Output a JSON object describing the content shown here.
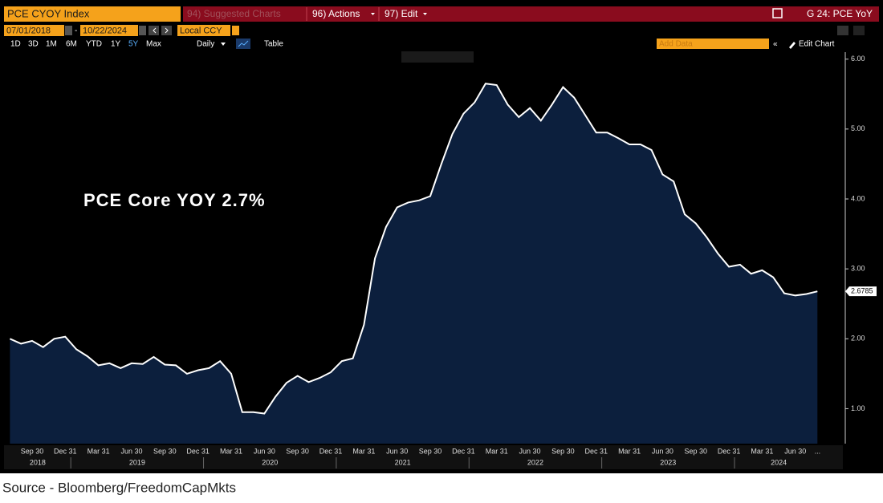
{
  "toolbar": {
    "ticker": "PCE CYOY Index",
    "suggested": "94) Suggested Charts",
    "actions": "96) Actions",
    "edit": "97) Edit",
    "chart_id": "G 24: PCE YoY"
  },
  "dates": {
    "start": "07/01/2018",
    "end": "10/22/2024",
    "currency": "Local CCY"
  },
  "periods": [
    "1D",
    "3D",
    "1M",
    "6M",
    "YTD",
    "1Y",
    "5Y",
    "Max"
  ],
  "frequency": "Daily",
  "table": "Table",
  "add_data": "Add Data",
  "edit_chart": "Edit Chart",
  "source": "Source - Bloomberg/FreedomCapMkts",
  "chart_data": {
    "type": "area",
    "annotation": "PCE Core YOY 2.7%",
    "categories": [
      null,
      null,
      "Sep 30",
      null,
      null,
      "Dec 31",
      null,
      null,
      "Mar 31",
      null,
      null,
      "Jun 30",
      null,
      null,
      "Sep 30",
      null,
      null,
      "Dec 31",
      null,
      null,
      "Mar 31",
      null,
      null,
      "Jun 30",
      null,
      null,
      "Sep 30",
      null,
      null,
      "Dec 31",
      null,
      null,
      "Mar 31",
      null,
      null,
      "Jun 30",
      null,
      null,
      "Sep 30",
      null,
      null,
      "Dec 31",
      null,
      null,
      "Mar 31",
      null,
      null,
      "Jun 30",
      null,
      null,
      "Sep 30",
      null,
      null,
      "Dec 31",
      null,
      null,
      "Mar 31",
      null,
      null,
      "Jun 30",
      null,
      null,
      "Sep 30",
      null,
      null,
      "Dec 31",
      null,
      null,
      "Mar 31",
      null,
      null,
      "Jun 30",
      null,
      "..."
    ],
    "years": [
      "2018",
      "2019",
      "2020",
      "2021",
      "2022",
      "2023",
      "2024"
    ],
    "values": [
      2.0,
      1.93,
      1.97,
      1.88,
      2.0,
      2.03,
      1.85,
      1.75,
      1.62,
      1.65,
      1.58,
      1.65,
      1.64,
      1.74,
      1.63,
      1.62,
      1.5,
      1.55,
      1.58,
      1.68,
      1.5,
      0.95,
      0.95,
      0.93,
      1.17,
      1.37,
      1.47,
      1.38,
      1.44,
      1.52,
      1.68,
      1.72,
      2.2,
      3.15,
      3.6,
      3.88,
      3.95,
      3.98,
      4.04,
      4.5,
      4.93,
      5.22,
      5.38,
      5.65,
      5.63,
      5.35,
      5.17,
      5.3,
      5.12,
      5.35,
      5.6,
      5.45,
      5.2,
      4.95,
      4.95,
      4.87,
      4.78,
      4.78,
      4.7,
      4.35,
      4.25,
      3.78,
      3.65,
      3.45,
      3.22,
      3.03,
      3.06,
      2.93,
      2.98,
      2.88,
      2.65,
      2.62,
      2.64,
      2.6785
    ],
    "color": "#0c1f3d",
    "line_color": "#ffffff",
    "ylim": [
      0.5,
      6.1
    ],
    "yticks": [
      {
        "value": 1,
        "label": "1.00"
      },
      {
        "value": 2,
        "label": "2.00"
      },
      {
        "value": 3,
        "label": "3.00"
      },
      {
        "value": 4,
        "label": "4.00"
      },
      {
        "value": 5,
        "label": "5.00"
      },
      {
        "value": 6,
        "label": "6.00"
      }
    ],
    "grid": false
  }
}
